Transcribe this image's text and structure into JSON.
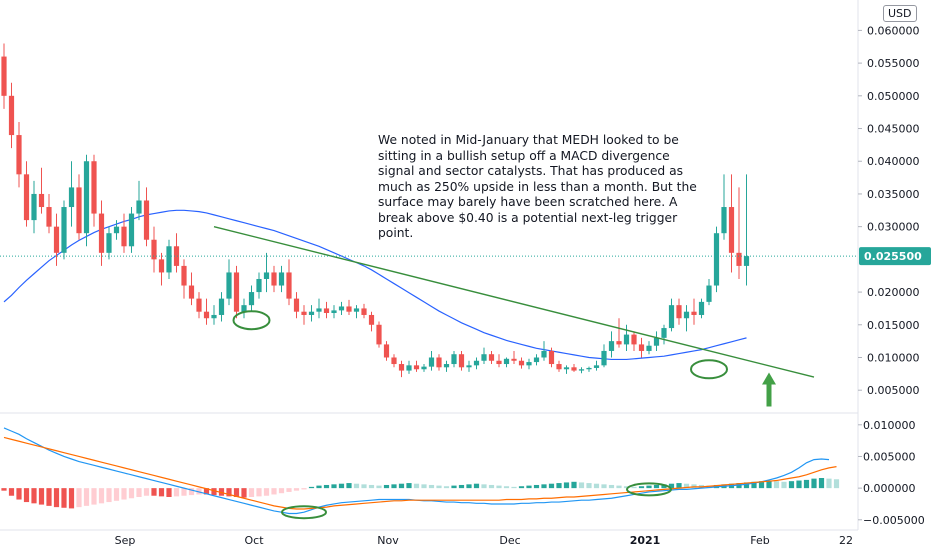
{
  "currency": "USD",
  "annotation": "We noted in Mid-January that MEDH looked to be sitting in a bullish setup off a MACD divergence signal and sector catalysts. That has produced as much as 250% upside in less than a month. But the surface may barely have been scratched here. A break above $0.40 is a potential next-leg trigger point.",
  "last_price_label": "0.025500",
  "colors": {
    "up": "#26a69a",
    "down": "#ef5350",
    "ma": "#2962ff",
    "trend": "#388e3c",
    "macd": "#2196f3",
    "signal": "#ff6d00",
    "last": "#26a69a"
  },
  "chart_data": [
    {
      "type": "candlestick",
      "symbol": "MEDH",
      "x_ticks": [
        "Sep",
        "Oct",
        "Nov",
        "Dec",
        "2021",
        "Feb",
        "22"
      ],
      "y_ticks": [
        "0.060000",
        "0.055000",
        "0.050000",
        "0.045000",
        "0.040000",
        "0.035000",
        "0.030000",
        "0.020000",
        "0.015000",
        "0.010000",
        "0.005000"
      ],
      "ylim": [
        0.0025,
        0.0625
      ],
      "last_price": 0.0255,
      "candles": [
        [
          0.056,
          0.058,
          0.048,
          0.05
        ],
        [
          0.05,
          0.052,
          0.042,
          0.044
        ],
        [
          0.044,
          0.046,
          0.036,
          0.038
        ],
        [
          0.038,
          0.04,
          0.03,
          0.031
        ],
        [
          0.031,
          0.037,
          0.029,
          0.035
        ],
        [
          0.035,
          0.039,
          0.032,
          0.033
        ],
        [
          0.033,
          0.035,
          0.029,
          0.03
        ],
        [
          0.03,
          0.032,
          0.024,
          0.026
        ],
        [
          0.026,
          0.034,
          0.025,
          0.033
        ],
        [
          0.033,
          0.04,
          0.03,
          0.036
        ],
        [
          0.036,
          0.038,
          0.028,
          0.029
        ],
        [
          0.029,
          0.041,
          0.027,
          0.04
        ],
        [
          0.04,
          0.041,
          0.03,
          0.032
        ],
        [
          0.032,
          0.034,
          0.024,
          0.026
        ],
        [
          0.026,
          0.03,
          0.025,
          0.029
        ],
        [
          0.029,
          0.031,
          0.028,
          0.03
        ],
        [
          0.03,
          0.032,
          0.026,
          0.027
        ],
        [
          0.027,
          0.033,
          0.026,
          0.032
        ],
        [
          0.032,
          0.037,
          0.031,
          0.034
        ],
        [
          0.034,
          0.036,
          0.027,
          0.028
        ],
        [
          0.028,
          0.03,
          0.023,
          0.025
        ],
        [
          0.025,
          0.026,
          0.021,
          0.023
        ],
        [
          0.023,
          0.028,
          0.022,
          0.027
        ],
        [
          0.027,
          0.029,
          0.023,
          0.024
        ],
        [
          0.024,
          0.025,
          0.019,
          0.021
        ],
        [
          0.021,
          0.023,
          0.018,
          0.019
        ],
        [
          0.019,
          0.02,
          0.016,
          0.017
        ],
        [
          0.017,
          0.019,
          0.015,
          0.016
        ],
        [
          0.016,
          0.018,
          0.015,
          0.0165
        ],
        [
          0.0165,
          0.02,
          0.0155,
          0.019
        ],
        [
          0.019,
          0.025,
          0.018,
          0.023
        ],
        [
          0.023,
          0.024,
          0.016,
          0.017
        ],
        [
          0.017,
          0.019,
          0.016,
          0.018
        ],
        [
          0.018,
          0.021,
          0.017,
          0.02
        ],
        [
          0.02,
          0.023,
          0.019,
          0.022
        ],
        [
          0.022,
          0.026,
          0.02,
          0.023
        ],
        [
          0.023,
          0.024,
          0.02,
          0.021
        ],
        [
          0.021,
          0.024,
          0.02,
          0.023
        ],
        [
          0.023,
          0.025,
          0.018,
          0.019
        ],
        [
          0.019,
          0.02,
          0.016,
          0.017
        ],
        [
          0.017,
          0.018,
          0.015,
          0.0165
        ],
        [
          0.0165,
          0.018,
          0.0155,
          0.017
        ],
        [
          0.017,
          0.019,
          0.016,
          0.0175
        ],
        [
          0.0175,
          0.0185,
          0.016,
          0.0168
        ],
        [
          0.0168,
          0.018,
          0.016,
          0.0172
        ],
        [
          0.0172,
          0.0185,
          0.0165,
          0.0178
        ],
        [
          0.0178,
          0.0188,
          0.0165,
          0.017
        ],
        [
          0.017,
          0.018,
          0.016,
          0.0175
        ],
        [
          0.0175,
          0.0182,
          0.016,
          0.0165
        ],
        [
          0.0165,
          0.017,
          0.014,
          0.015
        ],
        [
          0.015,
          0.0155,
          0.0115,
          0.012
        ],
        [
          0.012,
          0.0125,
          0.0095,
          0.01
        ],
        [
          0.01,
          0.0105,
          0.0085,
          0.009
        ],
        [
          0.009,
          0.0095,
          0.007,
          0.008
        ],
        [
          0.008,
          0.0095,
          0.0075,
          0.0088
        ],
        [
          0.0088,
          0.0095,
          0.0078,
          0.0082
        ],
        [
          0.0082,
          0.009,
          0.0078,
          0.0086
        ],
        [
          0.0086,
          0.011,
          0.008,
          0.01
        ],
        [
          0.01,
          0.0105,
          0.008,
          0.0085
        ],
        [
          0.0085,
          0.0095,
          0.0078,
          0.009
        ],
        [
          0.009,
          0.011,
          0.0085,
          0.0105
        ],
        [
          0.0105,
          0.011,
          0.008,
          0.0085
        ],
        [
          0.0085,
          0.0095,
          0.0078,
          0.0088
        ],
        [
          0.0088,
          0.01,
          0.0082,
          0.0095
        ],
        [
          0.0095,
          0.0115,
          0.009,
          0.0105
        ],
        [
          0.0105,
          0.011,
          0.009,
          0.0095
        ],
        [
          0.0095,
          0.0105,
          0.0085,
          0.009
        ],
        [
          0.009,
          0.01,
          0.0085,
          0.0098
        ],
        [
          0.0098,
          0.011,
          0.009,
          0.0095
        ],
        [
          0.0095,
          0.01,
          0.0083,
          0.0088
        ],
        [
          0.0088,
          0.0098,
          0.0082,
          0.0093
        ],
        [
          0.0093,
          0.0105,
          0.0088,
          0.01
        ],
        [
          0.01,
          0.0125,
          0.0095,
          0.011
        ],
        [
          0.011,
          0.0115,
          0.0085,
          0.009
        ],
        [
          0.009,
          0.0095,
          0.0078,
          0.0082
        ],
        [
          0.0082,
          0.0088,
          0.0075,
          0.0085
        ],
        [
          0.0085,
          0.009,
          0.0078,
          0.008
        ],
        [
          0.008,
          0.0085,
          0.0076,
          0.0082
        ],
        [
          0.0082,
          0.0086,
          0.0078,
          0.0084
        ],
        [
          0.0084,
          0.0095,
          0.008,
          0.0088
        ],
        [
          0.0088,
          0.012,
          0.0085,
          0.011
        ],
        [
          0.011,
          0.014,
          0.01,
          0.0125
        ],
        [
          0.0125,
          0.016,
          0.0115,
          0.012
        ],
        [
          0.012,
          0.015,
          0.011,
          0.0135
        ],
        [
          0.0135,
          0.014,
          0.011,
          0.012
        ],
        [
          0.012,
          0.013,
          0.01,
          0.011
        ],
        [
          0.011,
          0.0125,
          0.0105,
          0.0118
        ],
        [
          0.0118,
          0.014,
          0.011,
          0.013
        ],
        [
          0.013,
          0.015,
          0.012,
          0.0145
        ],
        [
          0.0145,
          0.019,
          0.014,
          0.018
        ],
        [
          0.018,
          0.019,
          0.015,
          0.016
        ],
        [
          0.016,
          0.018,
          0.014,
          0.017
        ],
        [
          0.017,
          0.019,
          0.015,
          0.0165
        ],
        [
          0.0165,
          0.019,
          0.016,
          0.0185
        ],
        [
          0.0185,
          0.022,
          0.018,
          0.021
        ],
        [
          0.021,
          0.03,
          0.02,
          0.029
        ],
        [
          0.029,
          0.038,
          0.028,
          0.033
        ],
        [
          0.033,
          0.038,
          0.023,
          0.026
        ],
        [
          0.026,
          0.036,
          0.022,
          0.024
        ],
        [
          0.024,
          0.038,
          0.021,
          0.0255
        ]
      ],
      "ma_line": [
        0.0185,
        0.0195,
        0.0207,
        0.0218,
        0.0228,
        0.0238,
        0.0248,
        0.0256,
        0.0264,
        0.0272,
        0.0279,
        0.0285,
        0.0291,
        0.0296,
        0.03,
        0.0304,
        0.0308,
        0.0311,
        0.0315,
        0.0318,
        0.032,
        0.0322,
        0.0324,
        0.0325,
        0.0325,
        0.0324,
        0.0323,
        0.0321,
        0.0318,
        0.0315,
        0.0312,
        0.0309,
        0.0306,
        0.0303,
        0.03,
        0.0297,
        0.0294,
        0.029,
        0.0286,
        0.0282,
        0.0278,
        0.0274,
        0.027,
        0.0265,
        0.026,
        0.0255,
        0.025,
        0.0245,
        0.024,
        0.0234,
        0.0227,
        0.022,
        0.0213,
        0.0206,
        0.0199,
        0.0192,
        0.0185,
        0.0178,
        0.0171,
        0.0165,
        0.0159,
        0.0153,
        0.0148,
        0.0143,
        0.0138,
        0.0134,
        0.013,
        0.0126,
        0.0123,
        0.012,
        0.0117,
        0.0114,
        0.0112,
        0.011,
        0.0108,
        0.0106,
        0.0104,
        0.0102,
        0.01,
        0.0099,
        0.0098,
        0.0097,
        0.0097,
        0.0097,
        0.0098,
        0.0099,
        0.01,
        0.0101,
        0.0102,
        0.0104,
        0.0106,
        0.0108,
        0.011,
        0.0112,
        0.0115,
        0.0118,
        0.0121,
        0.0124,
        0.0127,
        0.013
      ],
      "trendline": {
        "start": [
          28,
          0.03
        ],
        "end": [
          108,
          0.007
        ]
      },
      "arrow_at_index": 102,
      "ellipses": [
        {
          "index": 33,
          "value": 0.0157
        },
        {
          "index": 94,
          "value": 0.0082
        }
      ]
    },
    {
      "type": "macd",
      "y_ticks": [
        "0.010000",
        "0.005000",
        "0.000000",
        "−0.005000"
      ],
      "ylim": [
        -0.0055,
        0.0105
      ],
      "macd": [
        0.0095,
        0.009,
        0.0085,
        0.0078,
        0.0072,
        0.0066,
        0.006,
        0.0055,
        0.005,
        0.0046,
        0.0042,
        0.0039,
        0.0036,
        0.0033,
        0.003,
        0.0027,
        0.0024,
        0.0021,
        0.0018,
        0.0015,
        0.0012,
        0.0009,
        0.0006,
        0.0003,
        0.0,
        -0.0003,
        -0.0006,
        -0.0009,
        -0.0012,
        -0.0015,
        -0.0018,
        -0.0021,
        -0.0024,
        -0.0027,
        -0.003,
        -0.0033,
        -0.0036,
        -0.0038,
        -0.004,
        -0.004,
        -0.0038,
        -0.0034,
        -0.003,
        -0.0027,
        -0.0025,
        -0.0023,
        -0.0022,
        -0.0021,
        -0.002,
        -0.0019,
        -0.0018,
        -0.0018,
        -0.0018,
        -0.0018,
        -0.0018,
        -0.0019,
        -0.002,
        -0.002,
        -0.0021,
        -0.0022,
        -0.0022,
        -0.0023,
        -0.0023,
        -0.0024,
        -0.0024,
        -0.0025,
        -0.0025,
        -0.0025,
        -0.0025,
        -0.0024,
        -0.0024,
        -0.0023,
        -0.0023,
        -0.0022,
        -0.0022,
        -0.0021,
        -0.002,
        -0.0019,
        -0.0019,
        -0.0018,
        -0.0017,
        -0.0016,
        -0.0014,
        -0.0012,
        -0.001,
        -0.0008,
        -0.0006,
        -0.0005,
        -0.0004,
        -0.0003,
        -0.0002,
        -0.0002,
        -0.0001,
        0.0,
        0.0001,
        0.0002,
        0.0003,
        0.0004,
        0.0005,
        0.0006,
        0.0008,
        0.001,
        0.0013,
        0.0016,
        0.002,
        0.0025,
        0.0032,
        0.004,
        0.0045,
        0.0046,
        0.0045
      ],
      "signal": [
        0.008,
        0.0077,
        0.0074,
        0.0071,
        0.0068,
        0.0065,
        0.0062,
        0.0059,
        0.0056,
        0.0053,
        0.005,
        0.0047,
        0.0044,
        0.0041,
        0.0038,
        0.0035,
        0.0032,
        0.0029,
        0.0026,
        0.0023,
        0.002,
        0.0017,
        0.0014,
        0.0011,
        0.0008,
        0.0005,
        0.0002,
        -0.0001,
        -0.0004,
        -0.0007,
        -0.001,
        -0.0013,
        -0.0016,
        -0.0019,
        -0.0022,
        -0.0025,
        -0.0028,
        -0.003,
        -0.0032,
        -0.0033,
        -0.0033,
        -0.0032,
        -0.0031,
        -0.003,
        -0.0028,
        -0.0027,
        -0.0026,
        -0.0025,
        -0.0024,
        -0.0023,
        -0.0022,
        -0.0021,
        -0.002,
        -0.002,
        -0.0019,
        -0.0019,
        -0.0019,
        -0.0019,
        -0.0019,
        -0.0019,
        -0.0019,
        -0.0019,
        -0.0019,
        -0.0019,
        -0.0019,
        -0.0019,
        -0.0019,
        -0.0018,
        -0.0018,
        -0.0018,
        -0.0017,
        -0.0017,
        -0.0016,
        -0.0016,
        -0.0015,
        -0.0014,
        -0.0014,
        -0.0013,
        -0.0012,
        -0.0011,
        -0.001,
        -0.0009,
        -0.0008,
        -0.0007,
        -0.0006,
        -0.0005,
        -0.0004,
        -0.0003,
        -0.0002,
        -0.0001,
        0.0,
        0.0001,
        0.0002,
        0.0002,
        0.0003,
        0.0004,
        0.0005,
        0.0006,
        0.0007,
        0.0008,
        0.0009,
        0.001,
        0.0011,
        0.0012,
        0.0014,
        0.0016,
        0.0018,
        0.0021,
        0.0025,
        0.0029,
        0.0032,
        0.0034
      ],
      "histogram": [
        -0.0004,
        -0.0012,
        -0.0018,
        -0.0022,
        -0.0024,
        -0.0026,
        -0.0028,
        -0.003,
        -0.0031,
        -0.0032,
        -0.003,
        -0.0028,
        -0.0026,
        -0.0024,
        -0.0022,
        -0.002,
        -0.0018,
        -0.0016,
        -0.0014,
        -0.0012,
        -0.0012,
        -0.0013,
        -0.0014,
        -0.0013,
        -0.0012,
        -0.0011,
        -0.001,
        -0.001,
        -0.0011,
        -0.0012,
        -0.0013,
        -0.0014,
        -0.0015,
        -0.0014,
        -0.0013,
        -0.0012,
        -0.001,
        -0.0008,
        -0.0006,
        -0.0004,
        -0.0002,
        0.0002,
        0.0004,
        0.0005,
        0.0006,
        0.0007,
        0.0008,
        0.0007,
        0.0006,
        0.0005,
        0.0004,
        0.0005,
        0.0006,
        0.0007,
        0.0008,
        0.0007,
        0.0006,
        0.0005,
        0.0004,
        0.0003,
        0.0004,
        0.0005,
        0.0006,
        0.0007,
        0.0006,
        0.0005,
        0.0004,
        0.0003,
        0.0002,
        0.0003,
        0.0004,
        0.0005,
        0.0006,
        0.0007,
        0.0008,
        0.0009,
        0.001,
        0.0009,
        0.0008,
        0.0007,
        0.0006,
        0.0005,
        0.0004,
        0.0003,
        0.0002,
        0.0003,
        0.0004,
        0.0005,
        0.0006,
        0.0007,
        0.0008,
        0.0007,
        0.0006,
        0.0005,
        0.0004,
        0.0005,
        0.0006,
        0.0007,
        0.0008,
        0.0009,
        0.001,
        0.0011,
        0.0012,
        0.0011,
        0.001,
        0.0011,
        0.0012,
        0.0013,
        0.0015,
        0.0016,
        0.0015,
        0.0014
      ],
      "ellipses": [
        {
          "index": 40,
          "value": -0.0038
        },
        {
          "index": 86,
          "value": -0.0002
        }
      ]
    }
  ]
}
